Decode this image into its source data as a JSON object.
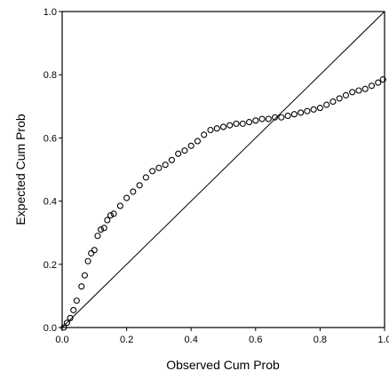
{
  "chart_data": {
    "type": "scatter",
    "xlabel": "Observed Cum Prob",
    "ylabel": "Expected Cum Prob",
    "xlim": [
      0.0,
      1.0
    ],
    "ylim": [
      0.0,
      1.0
    ],
    "x_ticks": [
      "0.0",
      "0.2",
      "0.4",
      "0.6",
      "0.8",
      "1.0"
    ],
    "y_ticks": [
      "0.0",
      "0.2",
      "0.4",
      "0.6",
      "0.8",
      "1.0"
    ],
    "grid": false,
    "reference_line": {
      "from": [
        0,
        0
      ],
      "to": [
        1,
        1
      ]
    },
    "series": [
      {
        "marker": "circle",
        "points": [
          [
            0.005,
            0.0
          ],
          [
            0.015,
            0.015
          ],
          [
            0.025,
            0.03
          ],
          [
            0.035,
            0.055
          ],
          [
            0.045,
            0.085
          ],
          [
            0.06,
            0.13
          ],
          [
            0.07,
            0.165
          ],
          [
            0.08,
            0.21
          ],
          [
            0.09,
            0.235
          ],
          [
            0.1,
            0.245
          ],
          [
            0.11,
            0.29
          ],
          [
            0.12,
            0.31
          ],
          [
            0.13,
            0.315
          ],
          [
            0.14,
            0.34
          ],
          [
            0.15,
            0.355
          ],
          [
            0.16,
            0.36
          ],
          [
            0.18,
            0.385
          ],
          [
            0.2,
            0.41
          ],
          [
            0.22,
            0.43
          ],
          [
            0.24,
            0.45
          ],
          [
            0.26,
            0.475
          ],
          [
            0.28,
            0.495
          ],
          [
            0.3,
            0.505
          ],
          [
            0.32,
            0.515
          ],
          [
            0.34,
            0.53
          ],
          [
            0.36,
            0.55
          ],
          [
            0.38,
            0.56
          ],
          [
            0.4,
            0.575
          ],
          [
            0.42,
            0.59
          ],
          [
            0.44,
            0.61
          ],
          [
            0.46,
            0.625
          ],
          [
            0.48,
            0.63
          ],
          [
            0.5,
            0.635
          ],
          [
            0.52,
            0.64
          ],
          [
            0.54,
            0.645
          ],
          [
            0.56,
            0.645
          ],
          [
            0.58,
            0.65
          ],
          [
            0.6,
            0.655
          ],
          [
            0.62,
            0.66
          ],
          [
            0.64,
            0.66
          ],
          [
            0.66,
            0.665
          ],
          [
            0.68,
            0.665
          ],
          [
            0.7,
            0.67
          ],
          [
            0.72,
            0.675
          ],
          [
            0.74,
            0.68
          ],
          [
            0.76,
            0.685
          ],
          [
            0.78,
            0.69
          ],
          [
            0.8,
            0.695
          ],
          [
            0.82,
            0.705
          ],
          [
            0.84,
            0.715
          ],
          [
            0.86,
            0.725
          ],
          [
            0.88,
            0.735
          ],
          [
            0.9,
            0.745
          ],
          [
            0.92,
            0.75
          ],
          [
            0.94,
            0.755
          ],
          [
            0.96,
            0.765
          ],
          [
            0.98,
            0.775
          ],
          [
            0.995,
            0.785
          ]
        ]
      }
    ]
  }
}
